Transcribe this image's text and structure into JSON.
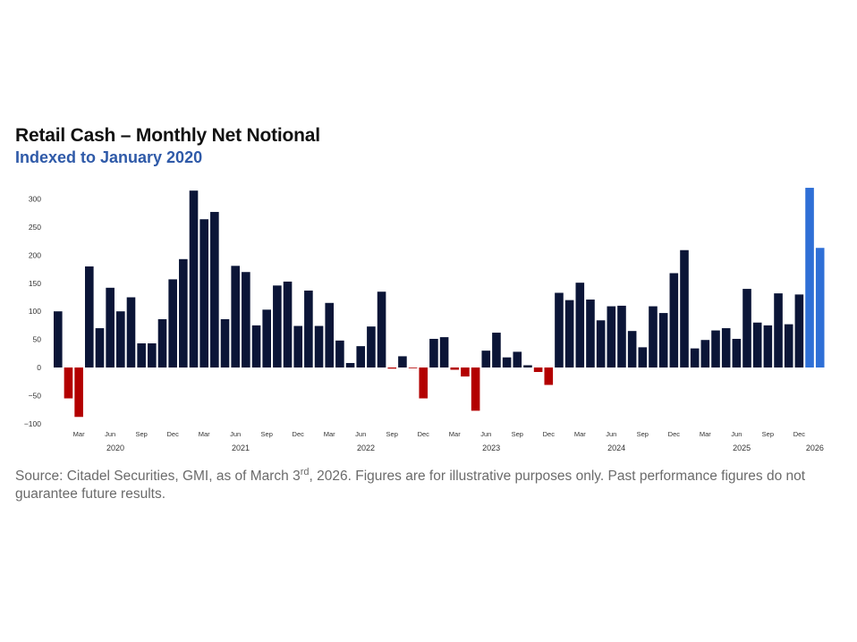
{
  "header": {
    "title": "Retail Cash – Monthly Net Notional",
    "subtitle": "Indexed to January 2020"
  },
  "footer": {
    "source_part1": "Source: Citadel Securities, GMI, as of March 3",
    "source_sup": "rd",
    "source_part2": ", 2026. Figures are for illustrative purposes only. Past performance figures do not guarantee future results."
  },
  "colors": {
    "positive": "#0b1537",
    "negative": "#b30000",
    "highlight": "#2f6fd6",
    "axis_text": "#333333"
  },
  "chart_data": {
    "type": "bar",
    "title": "Retail Cash – Monthly Net Notional",
    "subtitle": "Indexed to January 2020",
    "xlabel": "",
    "ylabel": "",
    "ylim": [
      -100,
      320
    ],
    "yticks": [
      300,
      250,
      200,
      150,
      100,
      50,
      0,
      -50,
      -100
    ],
    "ytick_labels": [
      "300",
      "250",
      "200",
      "150",
      "100",
      "50",
      "0",
      "−50",
      "−100"
    ],
    "grid": false,
    "month_tick_labels": [
      "Mar",
      "Jun",
      "Sep",
      "Dec",
      "Mar",
      "Jun",
      "Sep",
      "Dec",
      "Mar",
      "Jun",
      "Sep",
      "Dec",
      "Mar",
      "Jun",
      "Sep",
      "Dec",
      "Mar",
      "Jun",
      "Sep",
      "Dec",
      "Mar",
      "Jun",
      "Sep",
      "Dec"
    ],
    "year_labels": [
      "2020",
      "2021",
      "2022",
      "2023",
      "2024",
      "2025",
      "2026"
    ],
    "highlighted_categories": [
      "Jan 2026",
      "Feb 2026"
    ],
    "categories": [
      "Jan 2020",
      "Feb 2020",
      "Mar 2020",
      "Apr 2020",
      "May 2020",
      "Jun 2020",
      "Jul 2020",
      "Aug 2020",
      "Sep 2020",
      "Oct 2020",
      "Nov 2020",
      "Dec 2020",
      "Jan 2021",
      "Feb 2021",
      "Mar 2021",
      "Apr 2021",
      "May 2021",
      "Jun 2021",
      "Jul 2021",
      "Aug 2021",
      "Sep 2021",
      "Oct 2021",
      "Nov 2021",
      "Dec 2021",
      "Jan 2022",
      "Feb 2022",
      "Mar 2022",
      "Apr 2022",
      "May 2022",
      "Jun 2022",
      "Jul 2022",
      "Aug 2022",
      "Sep 2022",
      "Oct 2022",
      "Nov 2022",
      "Dec 2022",
      "Jan 2023",
      "Feb 2023",
      "Mar 2023",
      "Apr 2023",
      "May 2023",
      "Jun 2023",
      "Jul 2023",
      "Aug 2023",
      "Sep 2023",
      "Oct 2023",
      "Nov 2023",
      "Dec 2023",
      "Jan 2024",
      "Feb 2024",
      "Mar 2024",
      "Apr 2024",
      "May 2024",
      "Jun 2024",
      "Jul 2024",
      "Aug 2024",
      "Sep 2024",
      "Oct 2024",
      "Nov 2024",
      "Dec 2024",
      "Jan 2025",
      "Feb 2025",
      "Mar 2025",
      "Apr 2025",
      "May 2025",
      "Jun 2025",
      "Jul 2025",
      "Aug 2025",
      "Sep 2025",
      "Oct 2025",
      "Nov 2025",
      "Dec 2025",
      "Jan 2026",
      "Feb 2026"
    ],
    "values": [
      100,
      -55,
      -88,
      180,
      70,
      142,
      100,
      125,
      43,
      43,
      86,
      157,
      193,
      315,
      264,
      277,
      86,
      181,
      170,
      75,
      103,
      146,
      153,
      74,
      137,
      74,
      115,
      48,
      8,
      38,
      73,
      135,
      -2,
      20,
      -1,
      -55,
      51,
      54,
      -4,
      -16,
      -77,
      30,
      62,
      18,
      28,
      4,
      -8,
      -31,
      133,
      120,
      151,
      121,
      84,
      109,
      110,
      65,
      36,
      109,
      97,
      168,
      209,
      34,
      49,
      66,
      70,
      51,
      140,
      80,
      75,
      132,
      77,
      130,
      320,
      213
    ]
  }
}
